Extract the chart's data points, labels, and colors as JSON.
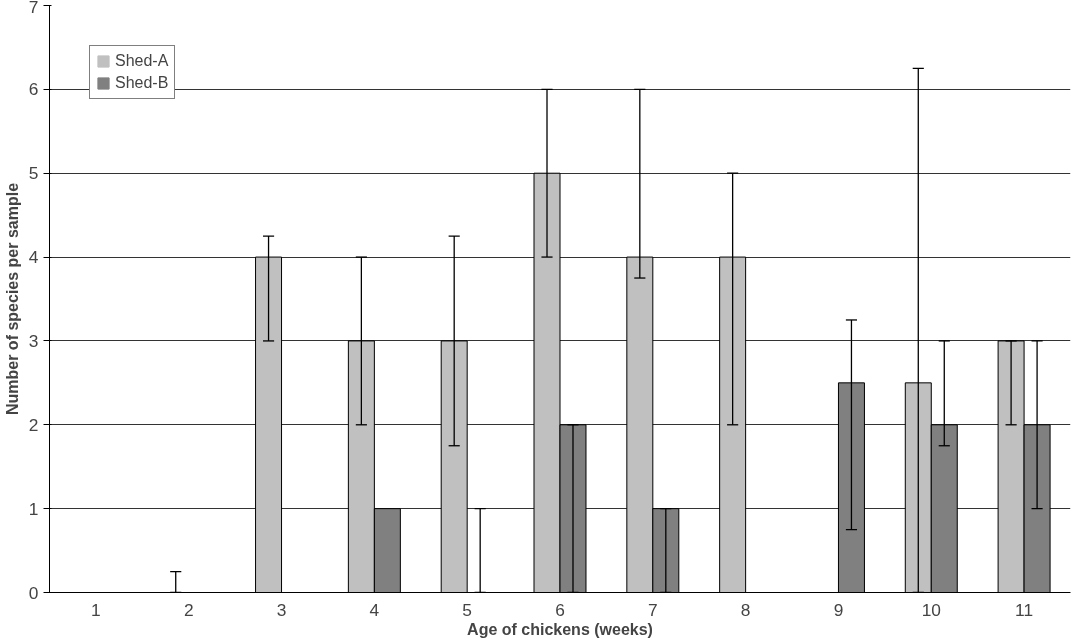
{
  "chart_data": {
    "type": "bar",
    "xlabel": "Age of chickens (weeks)",
    "ylabel": "Number of species per sample",
    "categories": [
      "1",
      "2",
      "3",
      "4",
      "5",
      "6",
      "7",
      "8",
      "9",
      "10",
      "11"
    ],
    "series": [
      {
        "name": "Shed-A",
        "color": "#c0c0c0",
        "values": [
          0,
          0,
          4,
          3,
          3,
          5,
          4,
          4,
          0,
          2.5,
          3
        ],
        "errors": [
          null,
          [
            0,
            0.25
          ],
          [
            3,
            4.25
          ],
          [
            2,
            4
          ],
          [
            1.75,
            4.25
          ],
          [
            4,
            6
          ],
          [
            3.75,
            6
          ],
          [
            2,
            5
          ],
          null,
          [
            0,
            6.25
          ],
          [
            2,
            3
          ]
        ]
      },
      {
        "name": "Shed-B",
        "color": "#808080",
        "values": [
          0,
          0,
          0,
          1,
          0,
          2,
          1,
          0,
          2.5,
          2,
          2
        ],
        "errors": [
          null,
          null,
          null,
          null,
          [
            0,
            1
          ],
          [
            0,
            2
          ],
          [
            0,
            1
          ],
          null,
          [
            0.75,
            3.25
          ],
          [
            1.75,
            3
          ],
          [
            1,
            3
          ]
        ]
      }
    ],
    "ylim": [
      0,
      7
    ],
    "yticks": [
      0,
      1,
      2,
      3,
      4,
      5,
      6,
      7
    ],
    "grid": "y",
    "legend": "top left"
  }
}
